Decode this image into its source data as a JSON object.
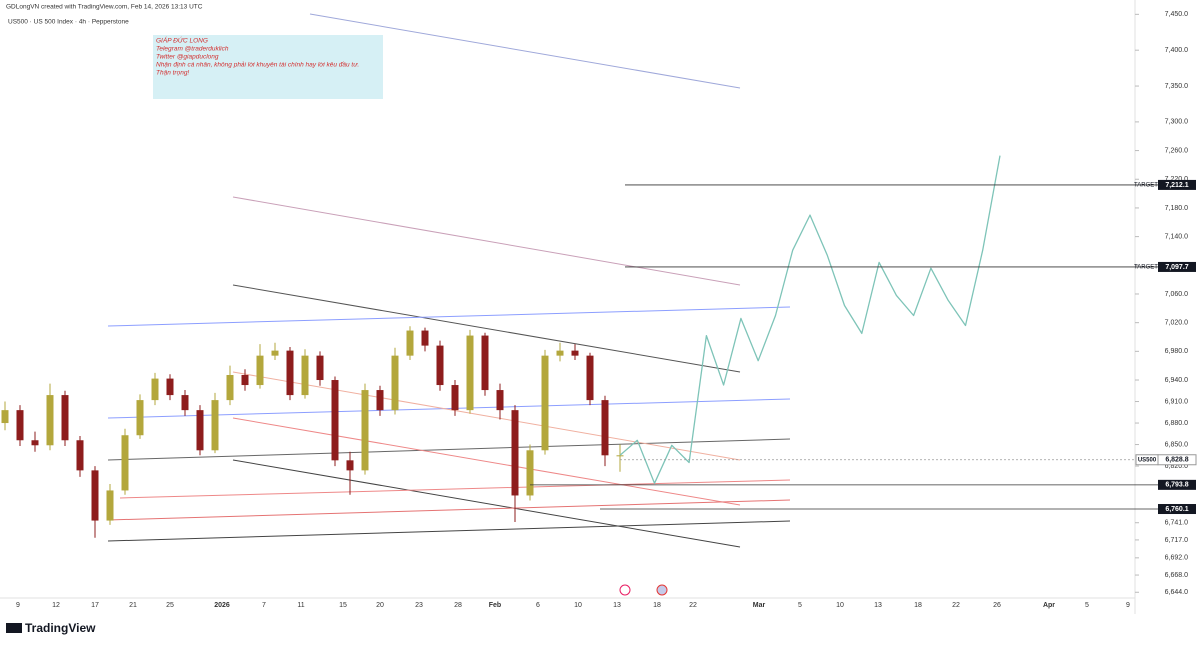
{
  "header": {
    "credit": "GDLongVN created with TradingView.com, Feb 14, 2026 13:13 UTC",
    "symbol": "US500 · US 500 Index · 4h · Pepperstone"
  },
  "note": {
    "lines": [
      "GIÁP ĐỨC LONG",
      "Telegram @traderduklich",
      "Twitter @giapduclong",
      "Nhận định cá nhân, không phải lời khuyên tài chính hay lời kêu đầu tư.",
      "Thận trọng!"
    ]
  },
  "footer": {
    "brand": "TradingView"
  },
  "chart_data": {
    "type": "candlestick",
    "up_color": "#b3a73c",
    "down_color": "#8e1d1d",
    "open": [
      6880,
      6898,
      6856,
      6849,
      6919,
      6856,
      6814,
      6744,
      6786,
      6863,
      6912,
      6942,
      6919,
      6898,
      6842,
      6912,
      6947,
      6933,
      6974,
      6981,
      6919,
      6974,
      6940,
      6828,
      6814,
      6926,
      6898,
      6974,
      7009,
      6988,
      6933,
      6898,
      7002,
      6926,
      6898,
      6779,
      6842,
      6974,
      6981,
      6974,
      6912,
      6835
    ],
    "high": [
      6910,
      6905,
      6868,
      6935,
      6925,
      6862,
      6820,
      6795,
      6872,
      6920,
      6950,
      6948,
      6926,
      6905,
      6922,
      6960,
      6955,
      6990,
      6992,
      6986,
      6983,
      6980,
      6945,
      6840,
      6935,
      6932,
      6985,
      7015,
      7013,
      6995,
      6940,
      7010,
      7006,
      6935,
      6905,
      6850,
      6982,
      6992,
      6990,
      6978,
      6918,
      6850
    ],
    "low": [
      6870,
      6848,
      6840,
      6842,
      6848,
      6805,
      6720,
      6738,
      6780,
      6858,
      6905,
      6912,
      6890,
      6835,
      6838,
      6905,
      6925,
      6928,
      6968,
      6912,
      6914,
      6932,
      6820,
      6780,
      6808,
      6890,
      6892,
      6968,
      6980,
      6925,
      6890,
      6893,
      6918,
      6885,
      6742,
      6772,
      6836,
      6966,
      6968,
      6905,
      6820,
      6812
    ],
    "close": [
      6898,
      6856,
      6849,
      6919,
      6856,
      6814,
      6744,
      6786,
      6863,
      6912,
      6942,
      6919,
      6898,
      6842,
      6912,
      6947,
      6933,
      6974,
      6981,
      6919,
      6974,
      6940,
      6828,
      6814,
      6926,
      6898,
      6974,
      7009,
      6988,
      6933,
      6898,
      7002,
      6926,
      6898,
      6779,
      6842,
      6974,
      6981,
      6974,
      6912,
      6835,
      6835
    ],
    "projection": {
      "color": "#7ec4b8",
      "values": [
        6835,
        6856,
        6796,
        6849,
        6825,
        7002,
        6933,
        7026,
        6967,
        7030,
        7121,
        7170,
        7114,
        7044,
        7005,
        7104,
        7058,
        7030,
        7096,
        7051,
        7016,
        7121,
        7253
      ]
    },
    "ylim": [
      6636,
      7470
    ],
    "yticks": [
      {
        "value": 7450,
        "label": "7,450.0"
      },
      {
        "value": 7400,
        "label": "7,400.0"
      },
      {
        "value": 7350,
        "label": "7,350.0"
      },
      {
        "value": 7300,
        "label": "7,300.0"
      },
      {
        "value": 7260,
        "label": "7,260.0"
      },
      {
        "value": 7220,
        "label": "7,220.0"
      },
      {
        "value": 7180,
        "label": "7,180.0"
      },
      {
        "value": 7140,
        "label": "7,140.0"
      },
      {
        "value": 7100,
        "label": "7,100.0"
      },
      {
        "value": 7060,
        "label": "7,060.0"
      },
      {
        "value": 7020,
        "label": "7,020.0"
      },
      {
        "value": 6980,
        "label": "6,980.0"
      },
      {
        "value": 6940,
        "label": "6,940.0"
      },
      {
        "value": 6910,
        "label": "6,910.0"
      },
      {
        "value": 6880,
        "label": "6,880.0"
      },
      {
        "value": 6850,
        "label": "6,850.0"
      },
      {
        "value": 6820,
        "label": "6,820.0"
      },
      {
        "value": 6741,
        "label": "6,741.0"
      },
      {
        "value": 6717,
        "label": "6,717.0"
      },
      {
        "value": 6692,
        "label": "6,692.0"
      },
      {
        "value": 6668,
        "label": "6,668.0"
      },
      {
        "value": 6644,
        "label": "6,644.0"
      }
    ],
    "xticks": [
      "9",
      "12",
      "17",
      "21",
      "25",
      "2026",
      "7",
      "11",
      "15",
      "20",
      "23",
      "28",
      "Feb",
      "6",
      "10",
      "13",
      "18",
      "22",
      "Mar",
      "5",
      "10",
      "13",
      "18",
      "22",
      "26",
      "Apr",
      "5",
      "9"
    ],
    "levels": [
      {
        "tag": "TARGET",
        "price": {
          "value": 7212.1,
          "label": "7,212.1"
        }
      },
      {
        "tag": "TARGET",
        "price": {
          "value": 7097.7,
          "label": "7,097.7"
        }
      },
      {
        "tag": "US500",
        "price": {
          "value": 6828.8,
          "label": "6,828.8"
        }
      },
      {
        "price": {
          "value": 6793.8,
          "label": "6,793.8"
        }
      },
      {
        "price": {
          "value": 6760.1,
          "label": "6,760.1"
        }
      }
    ]
  }
}
